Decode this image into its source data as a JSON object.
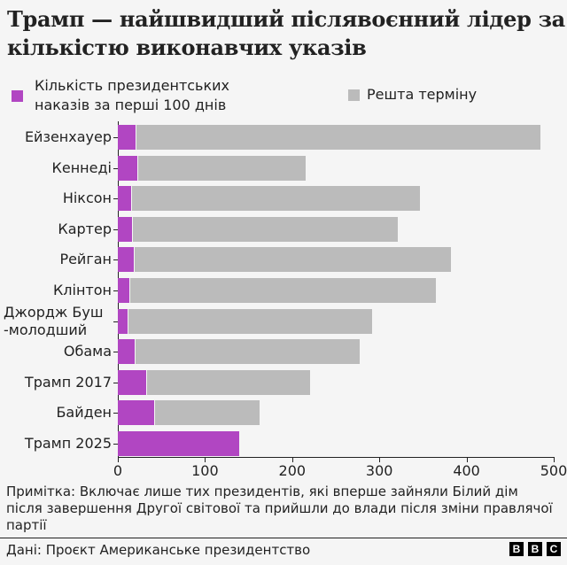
{
  "title": "Трамп — найшвидший післявоєнний лідер за кількістю виконавчих указів",
  "legend": {
    "first": {
      "label_line1": "Кількість президентських",
      "label_line2": "наказів за перші 100 днів",
      "color": "#b146c2"
    },
    "rest": {
      "label": "Решта терміну",
      "color": "#bbbbbb"
    }
  },
  "note": "Примітка: Включає лише тих президентів, які вперше зайняли Білий дім після завершення Другої світової та прийшли до влади після зміни правлячої партії",
  "source": "Дані: Проєкт Американське президентство",
  "logo": {
    "letters": [
      "B",
      "B",
      "C"
    ]
  },
  "chart_data": {
    "type": "bar",
    "orientation": "horizontal",
    "stacked": true,
    "title": "Трамп — найшвидший післявоєнний лідер за кількістю виконавчих указів",
    "xlabel": "",
    "ylabel": "",
    "xlim": [
      0,
      500
    ],
    "x_ticks": [
      "0",
      "100",
      "200",
      "300",
      "400",
      "500"
    ],
    "grid": false,
    "legend_position": "top",
    "categories": [
      "Ейзенхауер",
      "Кеннеді",
      "Ніксон",
      "Картер",
      "Рейган",
      "Клінтон",
      "Джордж Буш -молодший",
      "Обама",
      "Трамп 2017",
      "Байден",
      "Трамп 2025"
    ],
    "category_lines": [
      [
        "Ейзенхауер"
      ],
      [
        "Кеннеді"
      ],
      [
        "Ніксон"
      ],
      [
        "Картер"
      ],
      [
        "Рейган"
      ],
      [
        "Клінтон"
      ],
      [
        "Джордж Буш",
        "-молодший"
      ],
      [
        "Обама"
      ],
      [
        "Трамп 2017"
      ],
      [
        "Байден"
      ],
      [
        "Трамп 2025"
      ]
    ],
    "series": [
      {
        "name": "Кількість президентських наказів за перші 100 днів",
        "color": "#b146c2",
        "values": [
          20,
          22,
          15,
          16,
          18,
          13,
          11,
          19,
          33,
          42,
          139
        ]
      },
      {
        "name": "Решта терміну",
        "color": "#bbbbbb",
        "values": [
          464,
          192,
          331,
          304,
          363,
          351,
          280,
          257,
          187,
          120,
          0
        ]
      }
    ],
    "totals": [
      484,
      214,
      346,
      320,
      381,
      364,
      291,
      276,
      220,
      162,
      139
    ]
  }
}
